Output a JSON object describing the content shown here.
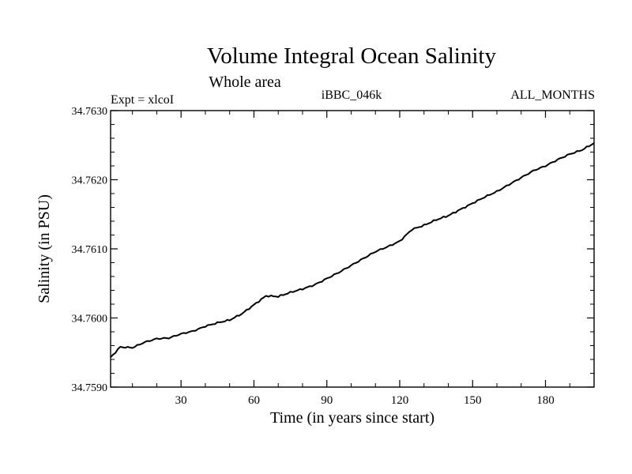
{
  "chart_data": {
    "type": "line",
    "title": "Volume Integral Ocean Salinity",
    "subtitle": "Whole area",
    "left_label": "Expt = xlcoI",
    "center_label": "iBBC_046k",
    "right_label": "ALL_MONTHS",
    "xlabel": "Time (in years since start)",
    "ylabel": "Salinity (in PSU)",
    "xlim": [
      1,
      200
    ],
    "ylim": [
      34.759,
      34.763
    ],
    "x_ticks": [
      30,
      60,
      90,
      120,
      150,
      180
    ],
    "x_tick_labels": [
      "30",
      "60",
      "90",
      "120",
      "150",
      "180"
    ],
    "y_ticks": [
      34.759,
      34.76,
      34.761,
      34.762,
      34.763
    ],
    "y_tick_labels": [
      "34.7590",
      "34.7600",
      "34.7610",
      "34.7620",
      "34.7630"
    ],
    "series": [
      {
        "name": "salinity",
        "color": "#000000",
        "x": [
          1,
          5,
          10,
          15,
          20,
          25,
          30,
          35,
          40,
          45,
          50,
          55,
          60,
          65,
          70,
          75,
          80,
          85,
          90,
          95,
          100,
          105,
          110,
          115,
          120,
          125,
          130,
          135,
          140,
          145,
          150,
          155,
          160,
          165,
          170,
          175,
          180,
          185,
          190,
          195,
          200
        ],
        "values": [
          34.75943,
          34.75958,
          34.75957,
          34.75965,
          34.7597,
          34.75971,
          34.75977,
          34.75981,
          34.75988,
          34.75993,
          34.75997,
          34.76006,
          34.76019,
          34.76032,
          34.76031,
          34.76037,
          34.76042,
          34.76048,
          34.76057,
          34.76066,
          34.76076,
          34.76086,
          34.76096,
          34.76103,
          34.76111,
          34.76128,
          34.76134,
          34.76142,
          34.76148,
          34.76157,
          34.76166,
          34.76175,
          34.76183,
          34.76193,
          34.76203,
          34.76213,
          34.7622,
          34.76229,
          34.76237,
          34.76243,
          34.76253
        ]
      }
    ]
  }
}
